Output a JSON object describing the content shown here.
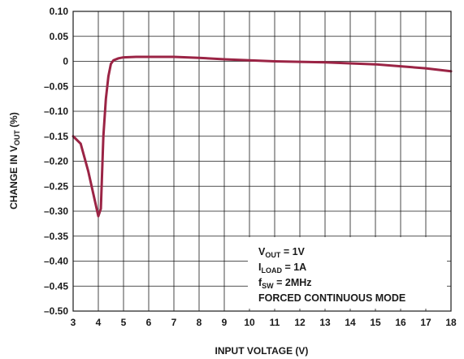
{
  "chart_data": {
    "type": "line",
    "xlabel": "INPUT VOLTAGE (V)",
    "ylabel": {
      "main": "CHANGE IN V",
      "sub": "OUT",
      "tail": " (%)"
    },
    "xlim": [
      3,
      18
    ],
    "ylim": [
      -0.5,
      0.1
    ],
    "x_ticks": [
      "3",
      "4",
      "5",
      "6",
      "7",
      "8",
      "9",
      "10",
      "11",
      "12",
      "13",
      "14",
      "15",
      "16",
      "17",
      "18"
    ],
    "y_ticks": [
      "0.10",
      "0.05",
      "0",
      "–0.05",
      "–0.10",
      "–0.15",
      "–0.20",
      "–0.25",
      "–0.30",
      "–0.35",
      "–0.40",
      "–0.45",
      "–0.50"
    ],
    "grid": true,
    "line_color": "#9b2445",
    "series": [
      {
        "x": [
          3.0,
          3.3,
          3.6,
          4.0,
          4.1,
          4.2,
          4.3,
          4.4,
          4.5,
          4.6,
          4.8,
          5.0,
          5.5,
          6,
          7,
          8,
          9,
          10,
          11,
          12,
          13,
          14,
          15,
          16,
          17,
          18
        ],
        "y": [
          -0.15,
          -0.165,
          -0.22,
          -0.31,
          -0.295,
          -0.15,
          -0.075,
          -0.03,
          -0.005,
          0.002,
          0.006,
          0.008,
          0.009,
          0.009,
          0.009,
          0.007,
          0.004,
          0.002,
          0.0,
          -0.001,
          -0.002,
          -0.004,
          -0.006,
          -0.01,
          -0.014,
          -0.02
        ]
      }
    ],
    "annotations": [
      {
        "main": "V",
        "sub": "OUT",
        "tail": " = 1V"
      },
      {
        "main": "I",
        "sub": "LOAD",
        "tail": " = 1A"
      },
      {
        "main": "f",
        "sub": "SW",
        "tail": " = 2MHz"
      },
      {
        "main": "FORCED CONTINUOUS MODE",
        "sub": "",
        "tail": ""
      }
    ]
  }
}
